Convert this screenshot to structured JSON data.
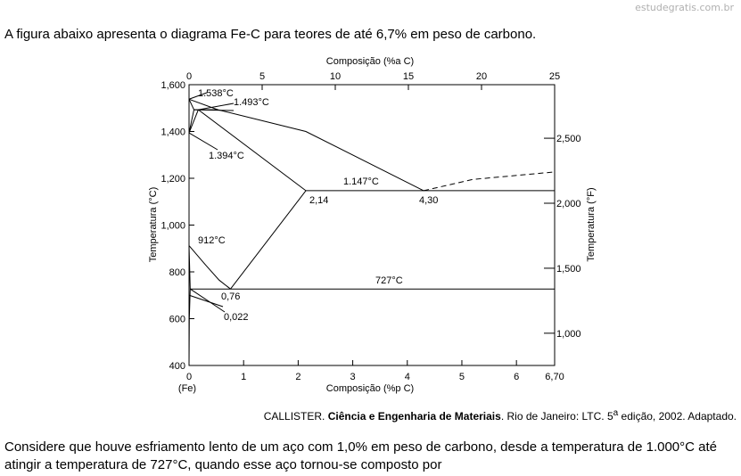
{
  "watermark": "estudegratis.com.br",
  "intro": "A figura abaixo apresenta o diagrama Fe-C para teores de até 6,7% em peso de carbono.",
  "chart_data": {
    "type": "diagram",
    "top_axis": {
      "label": "Composição (%a C)",
      "ticks": [
        "0",
        "5",
        "10",
        "15",
        "20",
        "25"
      ],
      "range": [
        0,
        25
      ]
    },
    "bottom_axis": {
      "label": "Composição (%p C)",
      "ticks": [
        "0",
        "1",
        "2",
        "3",
        "4",
        "5",
        "6"
      ],
      "end_label": "6,70",
      "origin_label": "(Fe)",
      "range": [
        0,
        6.7
      ]
    },
    "left_axis": {
      "label": "Temperatura (°C)",
      "ticks": [
        "400",
        "600",
        "800",
        "1,000",
        "1,200",
        "1,400",
        "1,600"
      ],
      "values": [
        400,
        600,
        800,
        1000,
        1200,
        1400,
        1600
      ],
      "range": [
        400,
        1600
      ]
    },
    "right_axis": {
      "label": "Temperatura (°F)",
      "ticks": [
        "1,000",
        "1,500",
        "2,000",
        "2,500"
      ],
      "values": [
        1000,
        1500,
        2000,
        2500
      ]
    },
    "annotations": {
      "t1538": "1.538°C",
      "t1493": "1.493°C",
      "t1394": "1.394°C",
      "t1147": "1.147°C",
      "t912": "912°C",
      "t727": "727°C",
      "c214": "2,14",
      "c430": "4,30",
      "c076": "0,76",
      "c0022": "0,022"
    },
    "key_points": [
      {
        "wt": 0,
        "temp": 1538
      },
      {
        "wt": 0.53,
        "temp": 1493
      },
      {
        "wt": 0.17,
        "temp": 1493
      },
      {
        "wt": 0.09,
        "temp": 1493
      },
      {
        "wt": 0,
        "temp": 1394
      },
      {
        "wt": 2.14,
        "temp": 1147
      },
      {
        "wt": 4.3,
        "temp": 1147
      },
      {
        "wt": 6.7,
        "temp": 1147
      },
      {
        "wt": 0,
        "temp": 912
      },
      {
        "wt": 0.76,
        "temp": 727
      },
      {
        "wt": 0.022,
        "temp": 727
      },
      {
        "wt": 6.7,
        "temp": 727
      }
    ]
  },
  "citation": {
    "author": "CALLISTER.",
    "title": "Ciência e Engenharia de Materiais",
    "rest1": ". Rio de Janeiro: LTC. 5",
    "sup": "a",
    "rest2": " edição, 2002. Adaptado."
  },
  "question": "Considere que houve esfriamento lento de um aço com 1,0% em peso de carbono, desde a temperatura de 1.000°C até atingir a temperatura de 727°C, quando esse aço tornou-se composto por"
}
